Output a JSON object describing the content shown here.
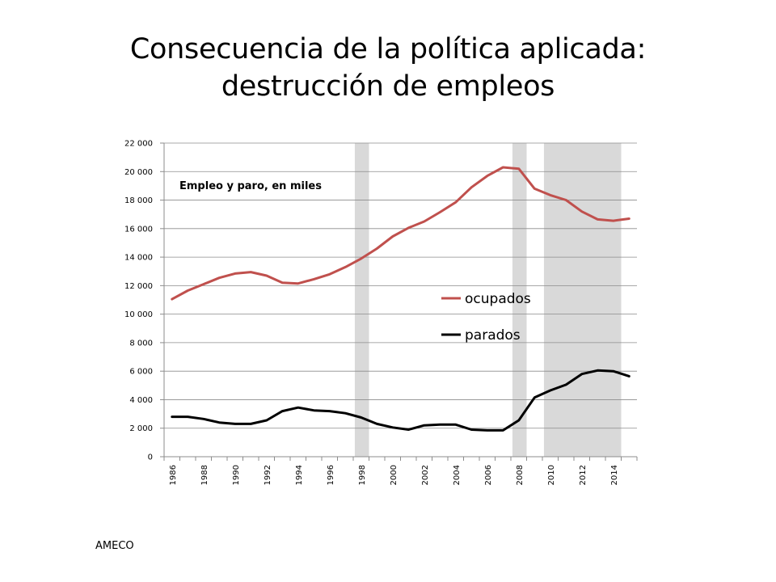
{
  "slide": {
    "title_line1": "Consecuencia de la política aplicada:",
    "title_line2": "destrucción de empleos",
    "source": "AMECO"
  },
  "chart_data": {
    "type": "line",
    "annotation": "Empleo y paro, en miles",
    "x": [
      1986,
      1987,
      1988,
      1989,
      1990,
      1991,
      1992,
      1993,
      1994,
      1995,
      1996,
      1997,
      1998,
      1999,
      2000,
      2001,
      2002,
      2003,
      2004,
      2005,
      2006,
      2007,
      2008,
      2009,
      2010,
      2011,
      2012,
      2013,
      2014,
      2015
    ],
    "series": [
      {
        "name": "ocupados",
        "color": "#c0504d",
        "values": [
          11050,
          11650,
          12100,
          12550,
          12850,
          12950,
          12700,
          12200,
          12150,
          12450,
          12800,
          13300,
          13900,
          14600,
          15450,
          16050,
          16500,
          17150,
          17850,
          18900,
          19700,
          20300,
          20200,
          18800,
          18350,
          18000,
          17200,
          16650,
          16550,
          16700
        ]
      },
      {
        "name": "parados",
        "color": "#000000",
        "values": [
          2800,
          2800,
          2650,
          2400,
          2300,
          2300,
          2550,
          3200,
          3450,
          3250,
          3200,
          3050,
          2750,
          2300,
          2050,
          1900,
          2200,
          2250,
          2250,
          1900,
          1850,
          1850,
          2550,
          4150,
          4650,
          5050,
          5800,
          6050,
          6000,
          5650
        ]
      }
    ],
    "shaded_periods": [
      [
        1997.6,
        1998.5
      ],
      [
        2007.6,
        2008.5
      ],
      [
        2009.6,
        2014.5
      ]
    ],
    "shade_color": "#d9d9d9",
    "ylim": [
      0,
      22000
    ],
    "yticks": [
      0,
      2000,
      4000,
      6000,
      8000,
      10000,
      12000,
      14000,
      16000,
      18000,
      20000,
      22000
    ],
    "ytick_labels": [
      "0",
      "2 000",
      "4 000",
      "6 000",
      "8 000",
      "10 000",
      "12 000",
      "14 000",
      "16 000",
      "18 000",
      "20 000",
      "22 000"
    ],
    "xticks": [
      1986,
      1988,
      1990,
      1992,
      1994,
      1996,
      1998,
      2000,
      2002,
      2004,
      2006,
      2008,
      2010,
      2012,
      2014
    ],
    "xtick_labels": [
      "1986",
      "1988",
      "1990",
      "1992",
      "1994",
      "1996",
      "1998",
      "2000",
      "2002",
      "2004",
      "2006",
      "2008",
      "2010",
      "2012",
      "2014"
    ],
    "grid": true,
    "legend_position": "center-right"
  }
}
